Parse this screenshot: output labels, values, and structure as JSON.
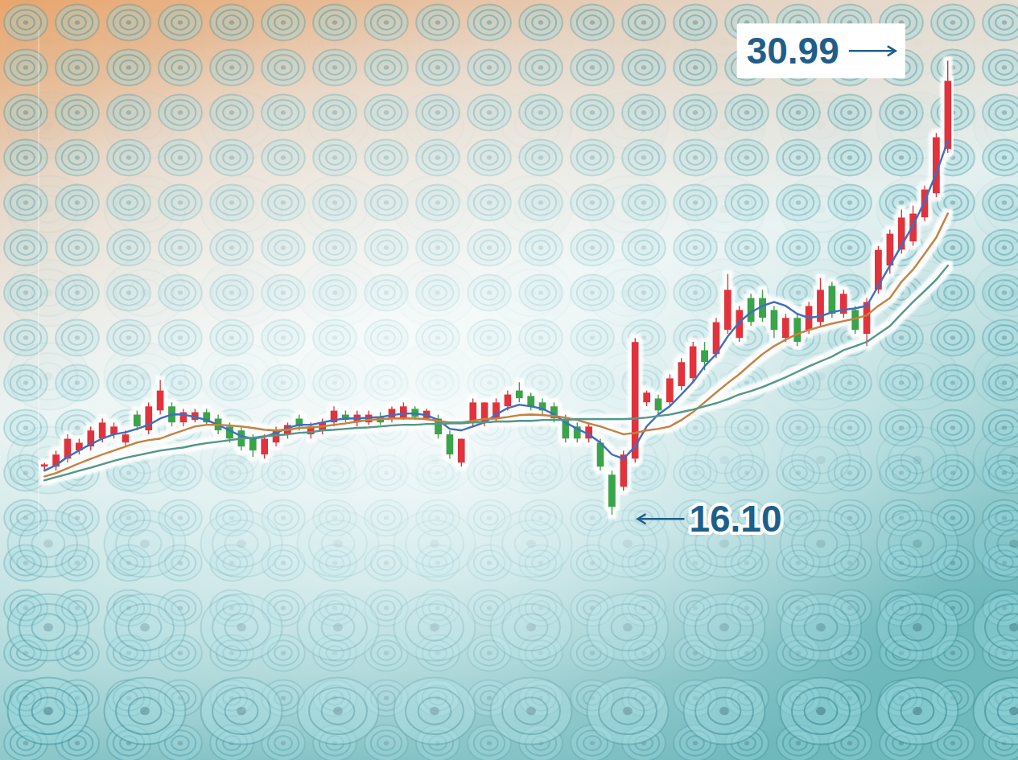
{
  "chart_data": {
    "type": "candlestick",
    "categories": [
      null,
      null,
      null,
      null,
      null,
      null,
      null,
      null,
      null,
      null,
      null,
      null,
      null,
      null,
      null,
      null,
      null,
      null,
      null,
      null,
      null,
      null,
      null,
      null,
      null,
      null,
      null,
      null,
      null,
      null,
      null,
      null,
      null,
      null,
      null,
      null,
      null,
      null,
      null,
      null,
      null,
      null,
      null,
      null,
      null,
      null,
      null,
      null,
      null,
      null,
      null,
      null,
      null,
      null,
      null,
      null,
      null,
      null,
      null,
      null,
      null,
      null,
      null,
      null,
      null,
      null,
      null,
      null,
      null,
      null,
      null,
      null,
      null,
      null,
      null,
      null,
      null,
      null,
      null
    ],
    "open": [
      17.68,
      17.68,
      17.94,
      18.21,
      18.34,
      18.6,
      18.74,
      18.47,
      19.39,
      18.87,
      19.52,
      19.66,
      19.13,
      19.21,
      19.47,
      19.26,
      19.0,
      18.87,
      18.6,
      18.08,
      18.47,
      18.74,
      19.26,
      18.74,
      18.87,
      19.13,
      19.39,
      19.13,
      19.13,
      19.31,
      19.26,
      19.26,
      19.58,
      19.26,
      19.26,
      18.74,
      17.81,
      19.13,
      19.13,
      19.26,
      19.66,
      20.18,
      20.0,
      19.79,
      19.66,
      19.26,
      19.0,
      18.6,
      18.47,
      17.42,
      17.02,
      17.94,
      19.79,
      19.92,
      19.79,
      20.32,
      20.58,
      21.5,
      21.37,
      22.16,
      21.9,
      23.21,
      23.21,
      22.82,
      21.9,
      22.56,
      22.16,
      22.42,
      23.61,
      22.69,
      22.82,
      22.03,
      23.48,
      24.27,
      24.79,
      25.06,
      25.85,
      26.64,
      28.09
    ],
    "high": [
      17.81,
      18.21,
      18.74,
      18.6,
      19.0,
      19.26,
      19.13,
      18.87,
      19.52,
      19.79,
      20.53,
      19.79,
      19.58,
      19.58,
      19.58,
      19.39,
      19.13,
      19.0,
      18.74,
      18.74,
      19.0,
      19.13,
      19.39,
      19.13,
      19.26,
      19.66,
      19.52,
      19.52,
      19.52,
      19.47,
      19.66,
      19.79,
      19.66,
      19.58,
      19.39,
      18.87,
      18.6,
      19.92,
      19.79,
      19.92,
      20.18,
      20.45,
      20.11,
      19.92,
      19.79,
      19.39,
      19.13,
      19.13,
      18.6,
      17.55,
      18.21,
      21.9,
      20.18,
      20.05,
      20.71,
      21.24,
      21.77,
      21.77,
      22.56,
      24.0,
      22.95,
      23.35,
      23.48,
      22.95,
      22.69,
      22.69,
      23.08,
      23.87,
      23.74,
      23.48,
      22.95,
      23.21,
      24.92,
      25.45,
      26.11,
      26.24,
      26.9,
      28.62,
      30.99
    ],
    "low": [
      17.55,
      17.55,
      17.81,
      18.08,
      18.21,
      18.47,
      18.6,
      18.34,
      18.87,
      18.74,
      19.39,
      19.0,
      19.0,
      19.13,
      19.05,
      18.74,
      18.47,
      18.21,
      18.0,
      17.94,
      18.34,
      18.6,
      18.87,
      18.6,
      18.74,
      19.0,
      19.13,
      19.0,
      19.05,
      19.05,
      19.13,
      19.21,
      19.21,
      19.21,
      18.6,
      17.94,
      17.68,
      19.0,
      19.0,
      19.13,
      19.52,
      19.79,
      19.52,
      19.39,
      19.13,
      18.47,
      18.47,
      18.47,
      17.55,
      16.1,
      16.89,
      17.81,
      19.66,
      19.39,
      19.66,
      20.18,
      20.45,
      20.84,
      21.24,
      22.03,
      21.77,
      22.29,
      22.42,
      21.9,
      21.77,
      21.63,
      22.03,
      22.29,
      22.56,
      22.56,
      22.03,
      21.63,
      23.35,
      24.0,
      24.66,
      24.92,
      25.72,
      26.51,
      27.96
    ],
    "close": [
      17.76,
      18.08,
      18.6,
      18.47,
      18.87,
      19.13,
      19.0,
      18.74,
      19.0,
      19.66,
      20.18,
      19.13,
      19.47,
      19.47,
      19.13,
      18.87,
      18.6,
      18.34,
      18.21,
      18.6,
      18.87,
      19.05,
      19.0,
      19.0,
      19.13,
      19.52,
      19.21,
      19.39,
      19.39,
      19.13,
      19.58,
      19.66,
      19.31,
      19.52,
      18.74,
      18.08,
      18.6,
      19.79,
      19.79,
      19.79,
      20.05,
      19.92,
      19.66,
      19.52,
      19.26,
      18.6,
      18.6,
      19.0,
      17.68,
      16.36,
      18.08,
      21.77,
      20.11,
      19.52,
      20.58,
      21.11,
      21.63,
      21.11,
      22.42,
      23.48,
      22.82,
      22.42,
      22.56,
      22.16,
      22.56,
      21.77,
      22.95,
      23.48,
      22.69,
      23.35,
      22.16,
      23.08,
      24.79,
      25.32,
      25.85,
      25.98,
      26.77,
      28.48,
      30.33
    ],
    "series": [
      {
        "type": "line",
        "color": "#3d6fc0",
        "values": [
          17.55,
          17.73,
          18.0,
          18.21,
          18.42,
          18.6,
          18.74,
          18.81,
          18.92,
          19.05,
          19.26,
          19.39,
          19.39,
          19.31,
          19.21,
          19.05,
          18.87,
          18.68,
          18.6,
          18.66,
          18.79,
          18.95,
          19.05,
          19.05,
          19.13,
          19.21,
          19.26,
          19.26,
          19.29,
          19.31,
          19.37,
          19.42,
          19.42,
          19.37,
          19.21,
          18.92,
          18.87,
          19.0,
          19.13,
          19.39,
          19.6,
          19.71,
          19.66,
          19.58,
          19.39,
          19.13,
          18.92,
          18.74,
          18.47,
          18.08,
          17.94,
          18.34,
          19.0,
          19.39,
          19.66,
          20.05,
          20.45,
          20.97,
          21.37,
          21.95,
          22.42,
          22.74,
          22.95,
          23.08,
          22.95,
          22.69,
          22.56,
          22.61,
          22.74,
          22.82,
          22.87,
          22.95,
          23.61,
          24.27,
          24.93,
          25.59,
          26.38,
          27.3,
          28.35
        ]
      },
      {
        "type": "line",
        "color": "#c8823a",
        "values": [
          17.36,
          17.47,
          17.63,
          17.79,
          17.94,
          18.08,
          18.21,
          18.34,
          18.47,
          18.55,
          18.6,
          18.74,
          18.87,
          19.0,
          19.05,
          19.05,
          19.03,
          19.0,
          18.95,
          18.89,
          18.87,
          18.89,
          18.95,
          18.97,
          19.0,
          19.05,
          19.1,
          19.16,
          19.21,
          19.24,
          19.26,
          19.26,
          19.26,
          19.24,
          19.18,
          19.13,
          19.13,
          19.18,
          19.24,
          19.26,
          19.31,
          19.37,
          19.39,
          19.37,
          19.34,
          19.29,
          19.21,
          19.1,
          19.0,
          18.87,
          18.74,
          18.79,
          18.87,
          18.92,
          19.0,
          19.21,
          19.47,
          19.79,
          20.11,
          20.42,
          20.71,
          21.05,
          21.37,
          21.63,
          21.84,
          22.03,
          22.16,
          22.27,
          22.37,
          22.45,
          22.53,
          22.64,
          22.95,
          23.21,
          23.74,
          24.14,
          24.66,
          25.19,
          25.98
        ]
      },
      {
        "type": "line",
        "color": "#4f9a8c",
        "values": [
          17.23,
          17.34,
          17.44,
          17.55,
          17.65,
          17.76,
          17.87,
          17.97,
          18.05,
          18.13,
          18.21,
          18.26,
          18.31,
          18.39,
          18.45,
          18.5,
          18.55,
          18.6,
          18.63,
          18.68,
          18.71,
          18.74,
          18.79,
          18.81,
          18.87,
          18.89,
          18.92,
          18.95,
          18.97,
          19.0,
          19.03,
          19.05,
          19.05,
          19.08,
          19.08,
          19.1,
          19.1,
          19.13,
          19.13,
          19.16,
          19.16,
          19.18,
          19.18,
          19.21,
          19.21,
          19.21,
          19.24,
          19.24,
          19.24,
          19.24,
          19.24,
          19.26,
          19.29,
          19.34,
          19.39,
          19.47,
          19.55,
          19.66,
          19.76,
          19.89,
          20.05,
          20.16,
          20.29,
          20.45,
          20.61,
          20.79,
          20.97,
          21.13,
          21.29,
          21.5,
          21.63,
          21.77,
          22.03,
          22.29,
          22.69,
          23.08,
          23.44,
          23.81,
          24.27
        ]
      }
    ],
    "annotations": [
      {
        "text": "30.99",
        "value": 30.99
      },
      {
        "text": "16.10",
        "value": 16.1
      }
    ],
    "ylim": [
      15.5,
      32.0
    ],
    "grid": false,
    "tick_labels": false
  }
}
